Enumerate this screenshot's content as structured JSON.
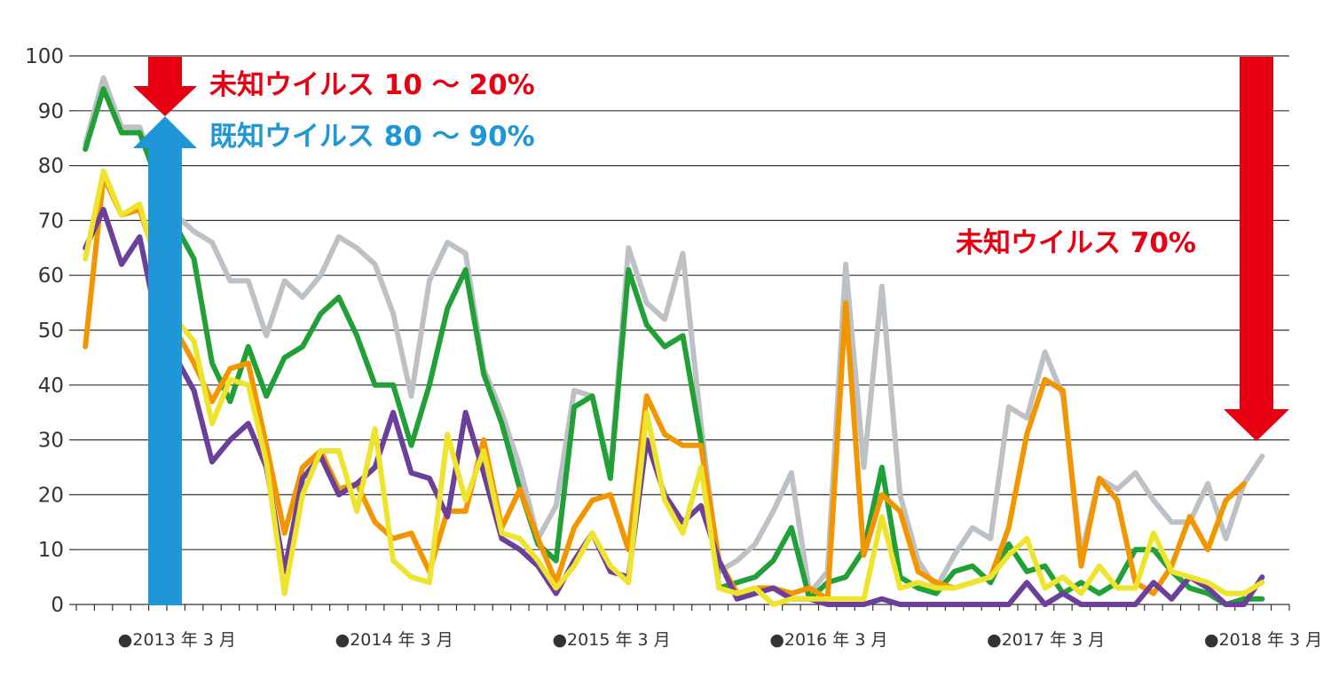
{
  "chart_data": {
    "type": "line",
    "title": "",
    "xlabel": "",
    "ylabel": "",
    "ylim": [
      0,
      100
    ],
    "yticks": [
      0,
      10,
      20,
      30,
      40,
      50,
      60,
      70,
      80,
      90,
      100
    ],
    "grid": "horizontal",
    "x_tick_labels": [
      {
        "label": "●2013 年 3 月",
        "month_index": 2
      },
      {
        "label": "●2014 年 3 月",
        "month_index": 14
      },
      {
        "label": "●2015 年 3 月",
        "month_index": 26
      },
      {
        "label": "●2016 年 3 月",
        "month_index": 38
      },
      {
        "label": "●2017 年 3 月",
        "month_index": 50
      },
      {
        "label": "●2018 年 3 月",
        "month_index": 62
      }
    ],
    "months_count": 67,
    "series": [
      {
        "color": "#bcc1c5",
        "values": [
          84,
          96,
          87,
          87,
          78,
          71,
          68,
          66,
          59,
          59,
          49,
          59,
          56,
          60,
          67,
          65,
          62,
          53,
          38,
          59,
          66,
          64,
          43,
          35,
          25,
          12,
          18,
          39,
          38,
          24,
          65,
          55,
          52,
          64,
          33,
          6,
          8,
          11,
          17,
          24,
          2,
          6,
          62,
          25,
          58,
          20,
          8,
          3,
          9,
          14,
          12,
          36,
          34,
          46,
          38,
          9,
          23,
          21,
          24,
          19,
          15,
          15,
          22,
          12,
          22,
          27
        ]
      },
      {
        "color": "#21a038",
        "values": [
          83,
          94,
          86,
          86,
          77,
          69,
          63,
          44,
          37,
          47,
          38,
          45,
          47,
          53,
          56,
          49,
          40,
          40,
          29,
          40,
          54,
          61,
          42,
          33,
          21,
          11,
          8,
          36,
          38,
          23,
          61,
          51,
          47,
          49,
          30,
          3,
          4,
          5,
          8,
          14,
          1,
          4,
          5,
          10,
          25,
          5,
          3,
          2,
          6,
          7,
          4,
          11,
          6,
          7,
          2,
          4,
          2,
          4,
          10,
          10,
          6,
          3,
          2,
          0,
          1,
          1
        ]
      },
      {
        "color": "#f29600",
        "values": [
          47,
          78,
          71,
          72,
          62,
          50,
          44,
          37,
          43,
          44,
          29,
          13,
          25,
          28,
          21,
          22,
          15,
          12,
          13,
          6,
          17,
          17,
          30,
          14,
          21,
          12,
          4,
          14,
          19,
          20,
          10,
          38,
          31,
          29,
          29,
          8,
          2,
          3,
          3,
          2,
          3,
          1,
          55,
          9,
          20,
          17,
          6,
          4,
          3,
          4,
          5,
          14,
          31,
          41,
          39,
          7,
          23,
          19,
          4,
          2,
          7,
          16,
          10,
          19,
          22
        ]
      },
      {
        "color": "#6b3f9a",
        "values": [
          65,
          72,
          62,
          67,
          51,
          45,
          39,
          26,
          30,
          33,
          25,
          6,
          23,
          27,
          20,
          22,
          25,
          35,
          24,
          23,
          16,
          35,
          24,
          12,
          10,
          7,
          2,
          8,
          13,
          6,
          5,
          30,
          20,
          15,
          18,
          8,
          1,
          2,
          3,
          1,
          1,
          0,
          0,
          0,
          1,
          0,
          0,
          0,
          0,
          0,
          0,
          0,
          4,
          0,
          2,
          0,
          0,
          0,
          0,
          4,
          1,
          5,
          3,
          0,
          0,
          5
        ]
      },
      {
        "color": "#eee42e",
        "values": [
          63,
          79,
          71,
          73,
          61,
          52,
          48,
          33,
          41,
          40,
          26,
          2,
          20,
          28,
          28,
          17,
          32,
          8,
          5,
          4,
          31,
          19,
          28,
          13,
          12,
          8,
          3,
          7,
          13,
          7,
          4,
          35,
          19,
          13,
          25,
          3,
          2,
          3,
          0,
          1,
          1,
          1,
          1,
          1,
          16,
          3,
          4,
          3,
          3,
          4,
          5,
          9,
          12,
          3,
          5,
          2,
          7,
          3,
          3,
          13,
          6,
          5,
          4,
          2,
          2,
          4
        ]
      }
    ]
  },
  "annotations": {
    "top_unknown": {
      "text": "未知ウイルス 10 ～ 20%",
      "color": "#e60012"
    },
    "top_known": {
      "text": "既知ウイルス 80 ～ 90%",
      "color": "#1e96d7"
    },
    "right_unknown": {
      "text": "未知ウイルス 70%",
      "color": "#e60012"
    }
  }
}
